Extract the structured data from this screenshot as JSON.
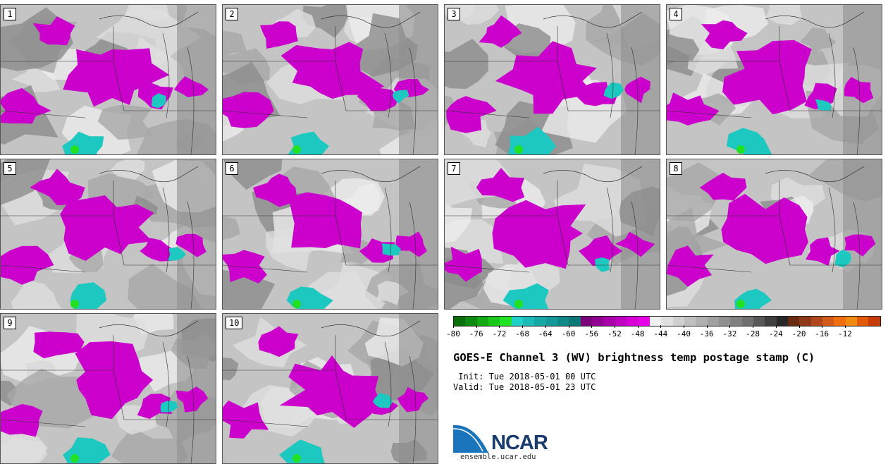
{
  "panels": [
    {
      "label": "1"
    },
    {
      "label": "2"
    },
    {
      "label": "3"
    },
    {
      "label": "4"
    },
    {
      "label": "5"
    },
    {
      "label": "6"
    },
    {
      "label": "7"
    },
    {
      "label": "8"
    },
    {
      "label": "9"
    },
    {
      "label": "10"
    }
  ],
  "colorbar": {
    "colors": [
      "#0a6e0a",
      "#0e8a0e",
      "#14a814",
      "#1ac81a",
      "#22e022",
      "#20d0c8",
      "#1cbab6",
      "#18a8a4",
      "#14989a",
      "#108888",
      "#0c7878",
      "#7a007a",
      "#900090",
      "#a800a8",
      "#c000c0",
      "#d800d8",
      "#e800e8",
      "#f0f0f0",
      "#e0e0e0",
      "#d0d0d0",
      "#c0c0c0",
      "#b0b0b0",
      "#a0a0a0",
      "#909090",
      "#808080",
      "#707070",
      "#585858",
      "#404040",
      "#282828",
      "#6b2a12",
      "#8e3a18",
      "#b0481c",
      "#d25a1a",
      "#ee6e10",
      "#f08a10",
      "#e05a0a",
      "#c83c0a"
    ],
    "tick_labels": [
      "-80",
      "-76",
      "-72",
      "-68",
      "-64",
      "-60",
      "-56",
      "-52",
      "-48",
      "-44",
      "-40",
      "-36",
      "-32",
      "-28",
      "-24",
      "-20",
      "-16",
      "-12"
    ]
  },
  "title": "GOES-E Channel 3 (WV) brightness temp postage stamp (C)",
  "init": " Init: Tue 2018-05-01 00 UTC",
  "valid": "Valid: Tue 2018-05-01 23 UTC",
  "logo": {
    "name": "NCAR",
    "site": "ensemble.ucar.edu"
  }
}
